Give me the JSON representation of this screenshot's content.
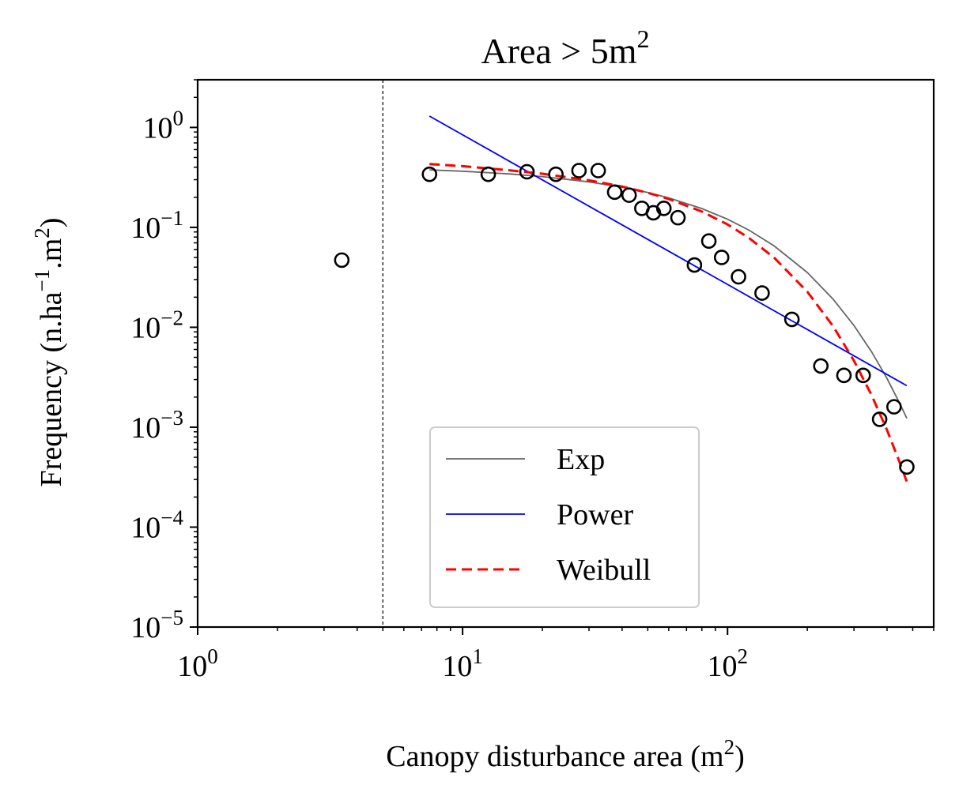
{
  "chart_data": {
    "type": "scatter",
    "title": {
      "text": "Area > 5m",
      "sup": "2"
    },
    "xlabel": {
      "pre": "Canopy disturbance area (m",
      "sup": "2",
      "post": ")"
    },
    "ylabel": {
      "pre": "Frequency (n.ha",
      "sup1": "−1",
      "mid": ".m",
      "sup2": "2",
      "post": ")"
    },
    "xscale": "log",
    "yscale": "log",
    "xlim": [
      1,
      600
    ],
    "ylim": [
      1e-05,
      3
    ],
    "x_ticks": [
      {
        "base": "10",
        "exp": "0",
        "value": 1
      },
      {
        "base": "10",
        "exp": "1",
        "value": 10
      },
      {
        "base": "10",
        "exp": "2",
        "value": 100
      }
    ],
    "y_ticks": [
      {
        "base": "10",
        "exp": "0",
        "value": 1
      },
      {
        "base": "10",
        "exp": "−1",
        "value": 0.1
      },
      {
        "base": "10",
        "exp": "−2",
        "value": 0.01
      },
      {
        "base": "10",
        "exp": "−3",
        "value": 0.001
      },
      {
        "base": "10",
        "exp": "−4",
        "value": 0.0001
      },
      {
        "base": "10",
        "exp": "−5",
        "value": 1e-05
      }
    ],
    "threshold_line": {
      "x": 5,
      "style": "dashed",
      "color": "#000000"
    },
    "points": [
      {
        "x": 3.5,
        "y": 0.047
      },
      {
        "x": 7.5,
        "y": 0.34
      },
      {
        "x": 12.5,
        "y": 0.34
      },
      {
        "x": 17.5,
        "y": 0.36
      },
      {
        "x": 22.5,
        "y": 0.34
      },
      {
        "x": 27.5,
        "y": 0.37
      },
      {
        "x": 32.5,
        "y": 0.37
      },
      {
        "x": 37.5,
        "y": 0.225
      },
      {
        "x": 42.5,
        "y": 0.21
      },
      {
        "x": 47.5,
        "y": 0.155
      },
      {
        "x": 52.5,
        "y": 0.14
      },
      {
        "x": 57.5,
        "y": 0.155
      },
      {
        "x": 65,
        "y": 0.125
      },
      {
        "x": 75,
        "y": 0.042
      },
      {
        "x": 85,
        "y": 0.073
      },
      {
        "x": 95,
        "y": 0.05
      },
      {
        "x": 110,
        "y": 0.032
      },
      {
        "x": 135,
        "y": 0.022
      },
      {
        "x": 175,
        "y": 0.012
      },
      {
        "x": 225,
        "y": 0.0041
      },
      {
        "x": 275,
        "y": 0.0033
      },
      {
        "x": 325,
        "y": 0.0033
      },
      {
        "x": 375,
        "y": 0.0012
      },
      {
        "x": 425,
        "y": 0.0016
      },
      {
        "x": 475,
        "y": 0.0004
      }
    ],
    "point_style": {
      "marker": "open-circle",
      "color": "#000000"
    },
    "series": [
      {
        "name": "Exp",
        "color": "#666666",
        "dash": "solid",
        "x": [
          7.5,
          10,
          15,
          20,
          30,
          40,
          50,
          60,
          80,
          100,
          120,
          150,
          200,
          250,
          300,
          350,
          400,
          450,
          475
        ],
        "y": [
          0.376,
          0.3645,
          0.3428,
          0.3224,
          0.2851,
          0.2522,
          0.223,
          0.1972,
          0.1543,
          0.1206,
          0.0943,
          0.0652,
          0.0354,
          0.0192,
          0.01043,
          0.005656,
          0.003069,
          0.001665,
          0.001225
        ]
      },
      {
        "name": "Power",
        "color": "#0000ff",
        "dash": "solid",
        "x": [
          7.5,
          475
        ],
        "y": [
          1.3,
          0.0026
        ]
      },
      {
        "name": "Weibull",
        "color": "#ff0000",
        "dash": "dashed",
        "x": [
          7.5,
          10,
          15,
          20,
          30,
          40,
          50,
          60,
          80,
          100,
          120,
          150,
          200,
          250,
          300,
          350,
          400,
          450,
          475
        ],
        "y": [
          0.43,
          0.41,
          0.373,
          0.344,
          0.296,
          0.256,
          0.222,
          0.192,
          0.144,
          0.107,
          0.0789,
          0.0497,
          0.0227,
          0.0103,
          0.00463,
          0.00208,
          0.000934,
          0.000422,
          0.000284
        ]
      }
    ],
    "legend": {
      "placement": "lower-center",
      "entries": [
        "Exp",
        "Power",
        "Weibull"
      ]
    }
  }
}
